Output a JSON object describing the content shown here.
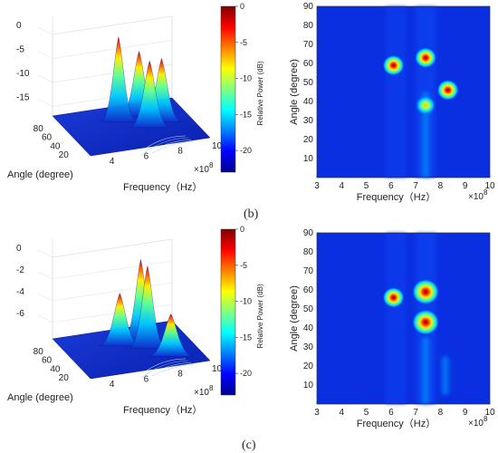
{
  "chart_data": [
    {
      "type": "surface",
      "panel": "b",
      "position": "left",
      "xlabel": "Angle (degree)",
      "ylabel": "Frequency（Hz）",
      "angle_ticks": [
        "20",
        "40",
        "60",
        "80"
      ],
      "freq_ticks": [
        "4",
        "6",
        "8",
        "10"
      ],
      "freq_exponent": "×10",
      "freq_exponent_power": "8",
      "z_ticks": [
        "-15",
        "-10",
        "-5",
        "0"
      ],
      "z_range": [
        -17,
        0
      ],
      "colorbar": {
        "label": "Relative Power (dB)",
        "ticks": [
          "0",
          "-5",
          "-10",
          "-15",
          "-20"
        ],
        "range": [
          -23,
          0
        ]
      },
      "peaks": [
        {
          "freq": 6.1,
          "angle": 59,
          "power": -0.5
        },
        {
          "freq": 7.4,
          "angle": 63,
          "power": -3.5
        },
        {
          "freq": 7.4,
          "angle": 38,
          "power": -5.5
        },
        {
          "freq": 8.3,
          "angle": 46,
          "power": -5
        }
      ]
    },
    {
      "type": "heatmap",
      "panel": "b",
      "position": "right",
      "xlabel": "Frequency（Hz）",
      "ylabel": "Angle (degree)",
      "x_ticks": [
        "3",
        "4",
        "5",
        "6",
        "7",
        "8",
        "9",
        "10"
      ],
      "y_ticks": [
        "10",
        "20",
        "30",
        "40",
        "50",
        "60",
        "70",
        "80",
        "90"
      ],
      "x_range": [
        3,
        10
      ],
      "y_range": [
        0,
        90
      ],
      "x_exponent": "×10",
      "x_exponent_power": "8",
      "peaks": [
        {
          "freq": 6.1,
          "angle": 59,
          "power": 0
        },
        {
          "freq": 7.4,
          "angle": 63,
          "power": -1
        },
        {
          "freq": 7.4,
          "angle": 38,
          "power": -2
        },
        {
          "freq": 8.3,
          "angle": 46,
          "power": -1.5
        }
      ],
      "ridges": [
        {
          "freq": 7.4,
          "angle_from": 0,
          "angle_to": 45,
          "power": -12
        }
      ]
    },
    {
      "type": "surface",
      "panel": "c",
      "position": "left",
      "xlabel": "Angle (degree)",
      "ylabel": "Frequency（Hz）",
      "angle_ticks": [
        "20",
        "40",
        "60",
        "80"
      ],
      "freq_ticks": [
        "4",
        "6",
        "8",
        "10"
      ],
      "freq_exponent": "×10",
      "freq_exponent_power": "8",
      "z_ticks": [
        "-6",
        "-4",
        "-2",
        "0"
      ],
      "z_range": [
        -7.5,
        0
      ],
      "colorbar": {
        "label": "Relative Power (dB)",
        "ticks": [
          "0",
          "-5",
          "-10",
          "-15",
          "-20"
        ],
        "range": [
          -23,
          0
        ]
      },
      "peaks": [
        {
          "freq": 6.1,
          "angle": 56,
          "power": -3.3
        },
        {
          "freq": 7.4,
          "angle": 59,
          "power": -0.2
        },
        {
          "freq": 7.4,
          "angle": 43,
          "power": -0.8
        },
        {
          "freq": 8.2,
          "angle": 20,
          "power": -5.2
        }
      ]
    },
    {
      "type": "heatmap",
      "panel": "c",
      "position": "right",
      "xlabel": "Frequency（Hz）",
      "ylabel": "Angle (degree)",
      "x_ticks": [
        "3",
        "4",
        "5",
        "6",
        "7",
        "8",
        "9",
        "10"
      ],
      "y_ticks": [
        "10",
        "20",
        "30",
        "40",
        "50",
        "60",
        "70",
        "80",
        "90"
      ],
      "x_range": [
        3,
        10
      ],
      "y_range": [
        0,
        90
      ],
      "x_exponent": "×10",
      "x_exponent_power": "8",
      "peaks": [
        {
          "freq": 6.1,
          "angle": 56,
          "power": -1.5
        },
        {
          "freq": 7.4,
          "angle": 59,
          "power": 0
        },
        {
          "freq": 7.4,
          "angle": 43,
          "power": 0
        }
      ],
      "ridges": [
        {
          "freq": 7.4,
          "angle_from": 0,
          "angle_to": 35,
          "power": -10
        },
        {
          "freq": 8.2,
          "angle_from": 5,
          "angle_to": 25,
          "power": -14
        }
      ]
    }
  ],
  "labels": {
    "b": "(b)",
    "c": "(c)"
  }
}
